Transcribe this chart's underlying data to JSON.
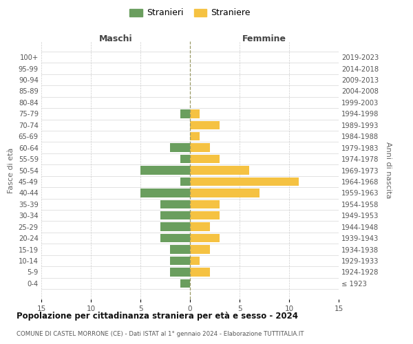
{
  "age_groups": [
    "100+",
    "95-99",
    "90-94",
    "85-89",
    "80-84",
    "75-79",
    "70-74",
    "65-69",
    "60-64",
    "55-59",
    "50-54",
    "45-49",
    "40-44",
    "35-39",
    "30-34",
    "25-29",
    "20-24",
    "15-19",
    "10-14",
    "5-9",
    "0-4"
  ],
  "birth_years": [
    "≤ 1923",
    "1924-1928",
    "1929-1933",
    "1934-1938",
    "1939-1943",
    "1944-1948",
    "1949-1953",
    "1954-1958",
    "1959-1963",
    "1964-1968",
    "1969-1973",
    "1974-1978",
    "1979-1983",
    "1984-1988",
    "1989-1993",
    "1994-1998",
    "1999-2003",
    "2004-2008",
    "2009-2013",
    "2014-2018",
    "2019-2023"
  ],
  "maschi": [
    0,
    0,
    0,
    0,
    0,
    1,
    0,
    0,
    2,
    1,
    5,
    1,
    5,
    3,
    3,
    3,
    3,
    2,
    2,
    2,
    1
  ],
  "femmine": [
    0,
    0,
    0,
    0,
    0,
    1,
    3,
    1,
    2,
    3,
    6,
    11,
    7,
    3,
    3,
    2,
    3,
    2,
    1,
    2,
    0
  ],
  "male_color": "#6a9e5e",
  "female_color": "#f5c242",
  "title": "Popolazione per cittadinanza straniera per età e sesso - 2024",
  "subtitle": "COMUNE DI CASTEL MORRONE (CE) - Dati ISTAT al 1° gennaio 2024 - Elaborazione TUTTITALIA.IT",
  "legend_male": "Stranieri",
  "legend_female": "Straniere",
  "xlabel_left": "Maschi",
  "xlabel_right": "Femmine",
  "ylabel_left": "Fasce di età",
  "ylabel_right": "Anni di nascita",
  "xlim": 15,
  "bg_color": "#ffffff",
  "grid_color": "#cccccc"
}
